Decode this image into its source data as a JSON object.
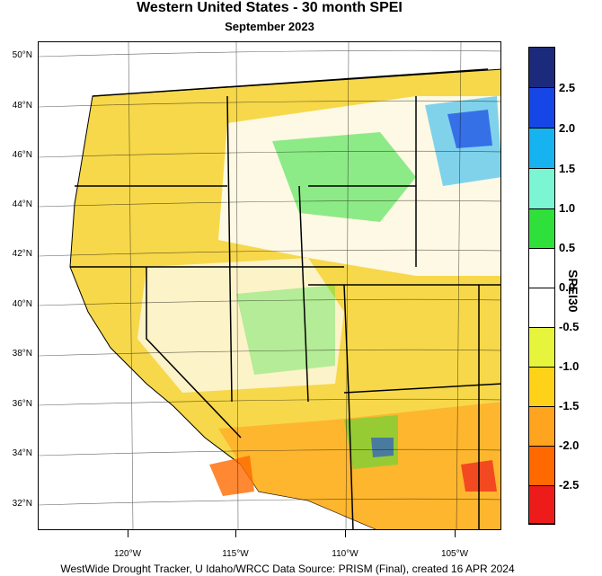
{
  "header": {
    "title": "Western United States - 30 month SPEI",
    "subtitle": "September 2023"
  },
  "map": {
    "lat_labels": [
      "50°N",
      "48°N",
      "46°N",
      "44°N",
      "42°N",
      "40°N",
      "38°N",
      "36°N",
      "34°N",
      "32°N"
    ],
    "lon_labels": [
      "120°W",
      "115°W",
      "110°W",
      "105°W"
    ]
  },
  "legend": {
    "title": "SPEI30",
    "bins": [
      {
        "color": "#1b2a7a"
      },
      {
        "color": "#1746e6"
      },
      {
        "color": "#17b3f0"
      },
      {
        "color": "#7cf5d2"
      },
      {
        "color": "#2fe03a"
      },
      {
        "color": "#ffffff"
      },
      {
        "color": "#ffffff"
      },
      {
        "color": "#e6f53c"
      },
      {
        "color": "#ffd21a"
      },
      {
        "color": "#ffa41f"
      },
      {
        "color": "#ff6a00"
      },
      {
        "color": "#ee1b1b"
      },
      {
        "color": "#b22222"
      }
    ],
    "labels": [
      "2.5",
      "2.0",
      "1.5",
      "1.0",
      "0.5",
      "0.0",
      "-0.5",
      "-1.0",
      "-1.5",
      "-2.0",
      "-2.5"
    ]
  },
  "footer": {
    "credit": "WestWide Drought Tracker, U Idaho/WRCC Data Source: PRISM (Final), created 16 APR 2024"
  }
}
